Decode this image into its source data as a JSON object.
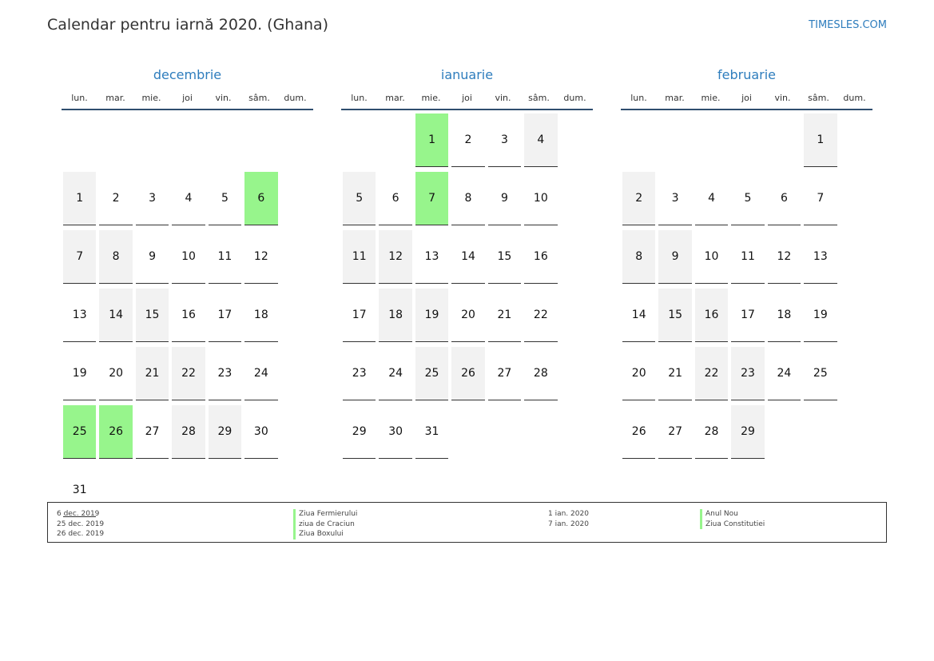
{
  "header": {
    "title": "Calendar pentru iarnă 2020. (Ghana)",
    "site": "TIMESLES.COM"
  },
  "colors": {
    "accent": "#2e7dbd",
    "holiday": "#97f58c",
    "weekend": "#f2f2f2"
  },
  "day_names": [
    "lun.",
    "mar.",
    "mie.",
    "joi",
    "vin.",
    "sâm.",
    "dum."
  ],
  "months": [
    {
      "name": "decembrie",
      "offset": 6,
      "days": 31,
      "holidays": [
        6,
        25,
        26
      ]
    },
    {
      "name": "ianuarie",
      "offset": 2,
      "days": 31,
      "holidays": [
        1,
        7
      ]
    },
    {
      "name": "februarie",
      "offset": 5,
      "days": 29,
      "holidays": []
    }
  ],
  "legend": [
    {
      "dates": [
        "6 dec. 2019",
        "25 dec. 2019",
        "26 dec. 2019"
      ],
      "names": [
        "Ziua Fermierului",
        "ziua de Craciun",
        "Ziua Boxului"
      ]
    },
    {
      "dates": [
        "1 ian. 2020",
        "7 ian. 2020"
      ],
      "names": [
        "Anul Nou",
        "Ziua Constitutiei"
      ]
    }
  ]
}
